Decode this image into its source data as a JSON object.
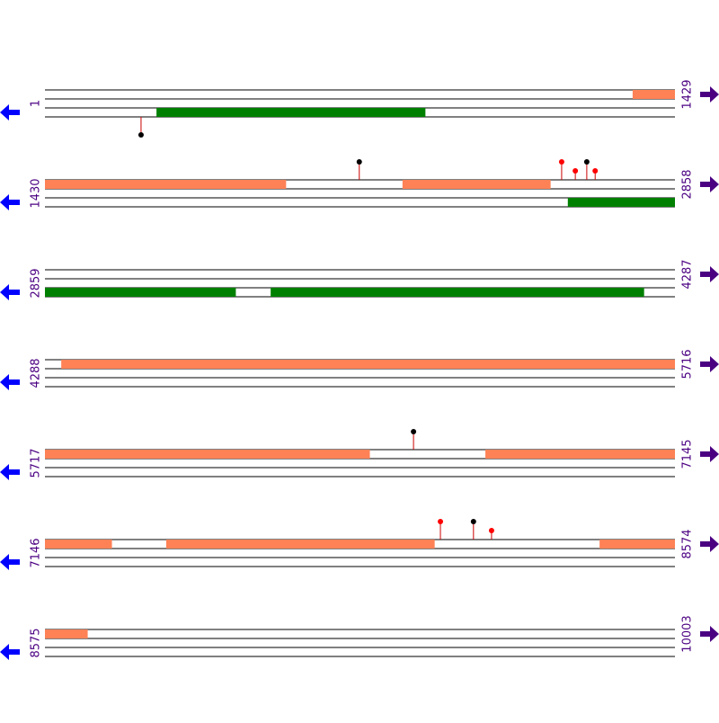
{
  "rows": [
    {
      "start": 1,
      "end": 1429
    },
    {
      "start": 1430,
      "end": 2858
    },
    {
      "start": 2859,
      "end": 4287
    },
    {
      "start": 4288,
      "end": 5716
    },
    {
      "start": 5717,
      "end": 7145
    },
    {
      "start": 7146,
      "end": 8574
    },
    {
      "start": 8575,
      "end": 10003
    }
  ],
  "forward_features": {
    "color": "#ff8256",
    "items": [
      {
        "start": 1334,
        "end": 1429
      },
      {
        "start": 1430,
        "end": 1976
      },
      {
        "start": 2241,
        "end": 2576
      },
      {
        "start": 4325,
        "end": 5716
      },
      {
        "start": 5717,
        "end": 6453
      },
      {
        "start": 6716,
        "end": 7145
      },
      {
        "start": 7146,
        "end": 7297
      },
      {
        "start": 7421,
        "end": 8029
      },
      {
        "start": 8404,
        "end": 8574
      },
      {
        "start": 8575,
        "end": 8671
      }
    ]
  },
  "reverse_features": {
    "color": "#008000",
    "items": [
      {
        "start": 254,
        "end": 863
      },
      {
        "start": 2616,
        "end": 2858
      },
      {
        "start": 2859,
        "end": 3291
      },
      {
        "start": 3371,
        "end": 4217
      }
    ]
  },
  "sites_top": [
    {
      "position": 2143,
      "color": "#000000"
    },
    {
      "position": 2602,
      "color": "#ff0000"
    },
    {
      "position": 2633,
      "color": "#ff0000"
    },
    {
      "position": 2659,
      "color": "#000000"
    },
    {
      "position": 2678,
      "color": "#ff0000"
    },
    {
      "position": 6553,
      "color": "#000000"
    },
    {
      "position": 8043,
      "color": "#ff0000"
    },
    {
      "position": 8118,
      "color": "#000000"
    },
    {
      "position": 8159,
      "color": "#ff0000"
    }
  ],
  "sites_bottom": [
    {
      "position": 219,
      "color": "#000000"
    }
  ]
}
